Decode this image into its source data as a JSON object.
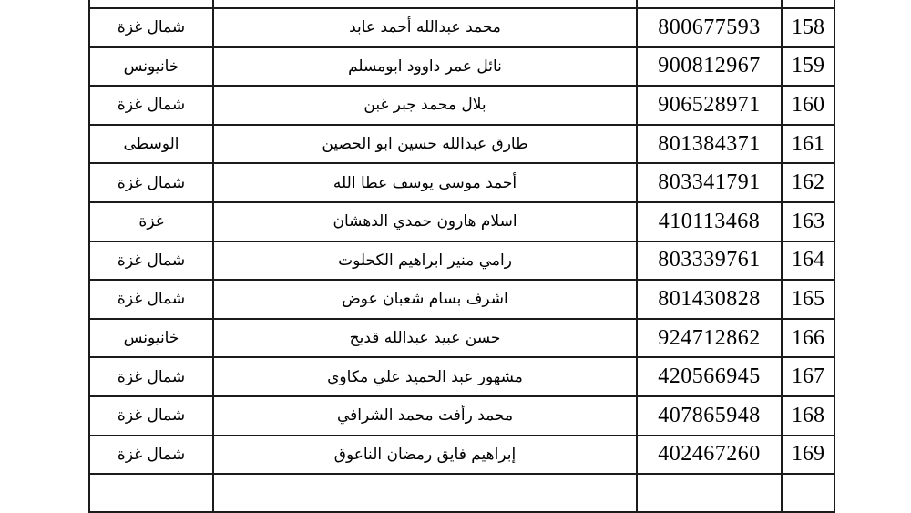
{
  "document": {
    "type": "scanned-roster-table",
    "background_color": "#ffffff",
    "border_color": "#1b1b1b",
    "text_color": "#000000"
  },
  "table": {
    "columns": [
      {
        "key": "index",
        "semantic": "row-number"
      },
      {
        "key": "number",
        "semantic": "id-number"
      },
      {
        "key": "name",
        "semantic": "full-name"
      },
      {
        "key": "region",
        "semantic": "region"
      }
    ],
    "rows": [
      {
        "index": "158",
        "number": "800677593",
        "name": "محمد عبدالله أحمد عابد",
        "region": "شمال غزة"
      },
      {
        "index": "159",
        "number": "900812967",
        "name": "نائل عمر داوود ابومسلم",
        "region": "خانيونس"
      },
      {
        "index": "160",
        "number": "906528971",
        "name": "بلال محمد جبر غبن",
        "region": "شمال غزة"
      },
      {
        "index": "161",
        "number": "801384371",
        "name": "طارق عبدالله حسين ابو الحصين",
        "region": "الوسطى"
      },
      {
        "index": "162",
        "number": "803341791",
        "name": "أحمد موسى يوسف عطا الله",
        "region": "شمال غزة"
      },
      {
        "index": "163",
        "number": "410113468",
        "name": "اسلام هارون حمدي الدهشان",
        "region": "غزة"
      },
      {
        "index": "164",
        "number": "803339761",
        "name": "رامي منير ابراهيم الكحلوت",
        "region": "شمال غزة"
      },
      {
        "index": "165",
        "number": "801430828",
        "name": "اشرف بسام شعبان عوض",
        "region": "شمال غزة"
      },
      {
        "index": "166",
        "number": "924712862",
        "name": "حسن عبيد عبدالله قديح",
        "region": "خانيونس"
      },
      {
        "index": "167",
        "number": "420566945",
        "name": "مشهور عبد الحميد علي مكاوي",
        "region": "شمال غزة"
      },
      {
        "index": "168",
        "number": "407865948",
        "name": "محمد رأفت محمد الشرافي",
        "region": "شمال غزة"
      },
      {
        "index": "169",
        "number": "402467260",
        "name": "إبراهيم فايق رمضان الناعوق",
        "region": "شمال غزة"
      }
    ]
  }
}
